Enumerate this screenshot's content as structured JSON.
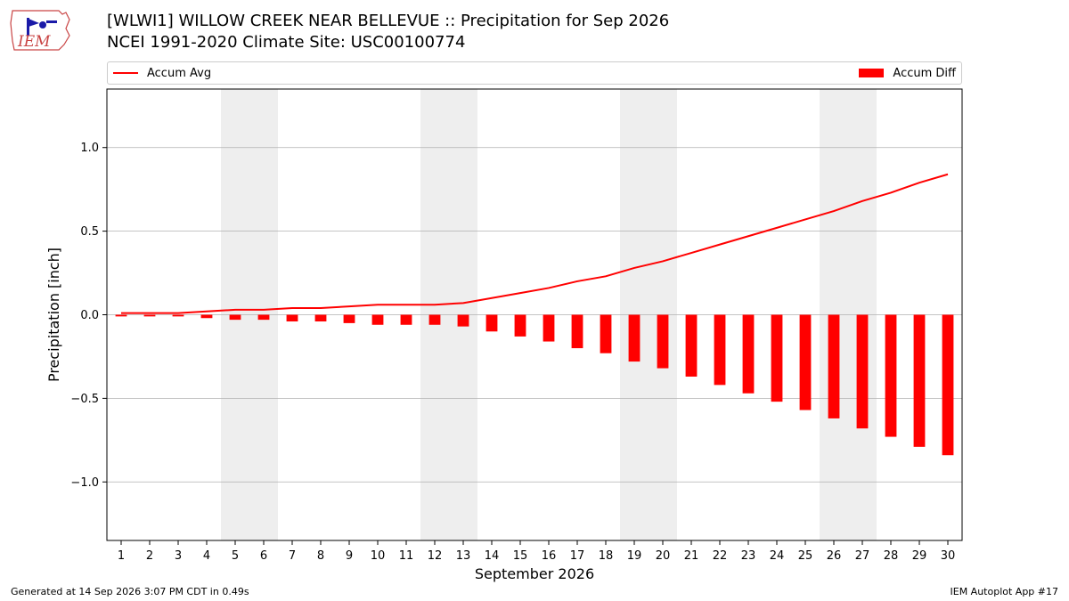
{
  "header": {
    "logo_text": "IEM",
    "title_line1": "[WLWI1] WILLOW CREEK NEAR BELLEVUE :: Precipitation for Sep 2026",
    "title_line2": "NCEI 1991-2020 Climate Site: USC00100774"
  },
  "footer": {
    "left": "Generated at 14 Sep 2026 3:07 PM CDT in 0.49s",
    "right": "IEM Autoplot App #17"
  },
  "colors": {
    "series": "#ff0000",
    "weekend_band": "#eeeeee",
    "grid": "#b0b0b0"
  },
  "chart_data": {
    "type": "bar",
    "xlabel": "September 2026",
    "ylabel": "Precipitation [inch]",
    "ylim": [
      -1.35,
      1.35
    ],
    "yticks": [
      -1.0,
      -0.5,
      0.0,
      0.5,
      1.0
    ],
    "ytick_labels": [
      "−1.0",
      "−0.5",
      "0.0",
      "0.5",
      "1.0"
    ],
    "grid": "horizontal",
    "legend_placement": "top",
    "x": [
      1,
      2,
      3,
      4,
      5,
      6,
      7,
      8,
      9,
      10,
      11,
      12,
      13,
      14,
      15,
      16,
      17,
      18,
      19,
      20,
      21,
      22,
      23,
      24,
      25,
      26,
      27,
      28,
      29,
      30
    ],
    "weekend_days": [
      5,
      6,
      12,
      13,
      19,
      20,
      26,
      27
    ],
    "series": [
      {
        "name": "Accum Avg",
        "kind": "line",
        "values": [
          0.01,
          0.01,
          0.01,
          0.02,
          0.03,
          0.03,
          0.04,
          0.04,
          0.05,
          0.06,
          0.06,
          0.06,
          0.07,
          0.1,
          0.13,
          0.16,
          0.2,
          0.23,
          0.28,
          0.32,
          0.37,
          0.42,
          0.47,
          0.52,
          0.57,
          0.62,
          0.68,
          0.73,
          0.79,
          0.84
        ]
      },
      {
        "name": "Accum Diff",
        "kind": "bar",
        "values": [
          -0.01,
          -0.01,
          -0.01,
          -0.02,
          -0.03,
          -0.03,
          -0.04,
          -0.04,
          -0.05,
          -0.06,
          -0.06,
          -0.06,
          -0.07,
          -0.1,
          -0.13,
          -0.16,
          -0.2,
          -0.23,
          -0.28,
          -0.32,
          -0.37,
          -0.42,
          -0.47,
          -0.52,
          -0.57,
          -0.62,
          -0.68,
          -0.73,
          -0.79,
          -0.84
        ]
      }
    ]
  }
}
